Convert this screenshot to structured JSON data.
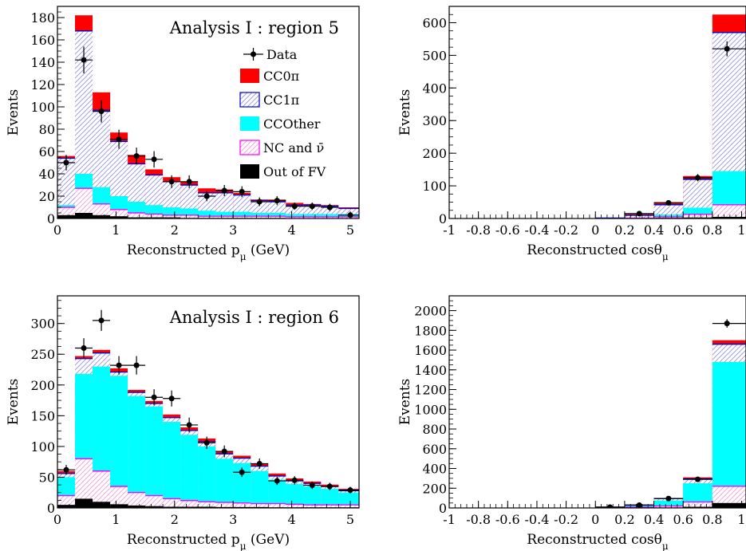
{
  "colors": {
    "cc0pi": "#ff0000",
    "cc1pi_line": "#0000cc",
    "cc1pi_hatch": "#8f8fd8",
    "ccother": "#00ffff",
    "nc": "#ff00ff",
    "nc_hatch": "#f29ad8",
    "outfv": "#000000"
  },
  "chart_data": [
    {
      "type": "histogram",
      "title": "Analysis I : region 5",
      "xlabel": "Reconstructed p_μ (GeV)",
      "ylabel": "Events",
      "xlim": [
        0,
        5.15
      ],
      "ylim": [
        0,
        190
      ],
      "xticks": [
        0,
        1,
        2,
        3,
        4,
        5
      ],
      "xtick_labels": [
        "0",
        "1",
        "2",
        "3",
        "4",
        "5"
      ],
      "yticks": [
        0,
        20,
        40,
        60,
        80,
        100,
        120,
        140,
        160,
        180
      ],
      "ytick_labels": [
        "0",
        "20",
        "40",
        "60",
        "80",
        "100",
        "120",
        "140",
        "160",
        "180"
      ],
      "bin_edges": [
        0,
        0.3,
        0.6,
        0.9,
        1.2,
        1.5,
        1.8,
        2.1,
        2.4,
        2.7,
        3.0,
        3.3,
        3.6,
        3.9,
        4.2,
        4.5,
        4.8,
        5.15
      ],
      "stack": {
        "outfv": [
          3,
          5,
          3,
          2,
          1,
          1,
          1,
          0.5,
          0.5,
          0.5,
          0.5,
          0.5,
          0.5,
          0.3,
          0.3,
          0.3,
          0.3
        ],
        "nc": [
          10,
          27,
          13,
          8,
          5,
          4,
          3,
          3,
          2,
          2,
          2,
          2,
          2,
          1.5,
          1.5,
          1.5,
          1.5
        ],
        "ccother": [
          12,
          40,
          28,
          20,
          15,
          12,
          10,
          9,
          7,
          6,
          6,
          5,
          5,
          4,
          4,
          4,
          4
        ],
        "cc1pi": [
          54,
          168,
          97,
          69,
          49,
          39,
          33,
          30,
          23,
          23,
          21,
          16,
          15,
          12,
          12,
          11,
          9
        ],
        "cc0pi": [
          56,
          182,
          113,
          77,
          57,
          44,
          37,
          33,
          27,
          26,
          23,
          17,
          17,
          14,
          13,
          12,
          10
        ]
      },
      "data_points": {
        "x": [
          0.15,
          0.45,
          0.75,
          1.05,
          1.35,
          1.65,
          1.95,
          2.25,
          2.55,
          2.85,
          3.15,
          3.45,
          3.75,
          4.05,
          4.35,
          4.65,
          5.0
        ],
        "y": [
          50,
          142,
          96,
          71,
          56,
          53,
          33,
          33,
          20,
          25,
          24,
          15,
          16,
          11,
          11,
          10,
          3
        ],
        "yerr": [
          7,
          12,
          10,
          8.5,
          7.5,
          7.3,
          5.7,
          5.7,
          4.5,
          5,
          4.9,
          3.9,
          4,
          3.3,
          3.3,
          3.2,
          1.7
        ]
      },
      "legend": {
        "placement": "upper right",
        "entries": [
          {
            "key": "data",
            "label": "Data"
          },
          {
            "key": "cc0pi",
            "label": "CC0π"
          },
          {
            "key": "cc1pi",
            "label": "CC1π"
          },
          {
            "key": "ccother",
            "label": "CCOther"
          },
          {
            "key": "nc",
            "label": "NC and ν̄"
          },
          {
            "key": "outfv",
            "label": "Out of FV"
          }
        ]
      }
    },
    {
      "type": "histogram",
      "title": "",
      "xlabel": "Reconstructed cosθ_μ",
      "ylabel": "Events",
      "xlim": [
        -1,
        1.03
      ],
      "ylim": [
        0,
        650
      ],
      "xticks": [
        -1,
        -0.8,
        -0.6,
        -0.4,
        -0.2,
        0,
        0.2,
        0.4,
        0.6,
        0.8,
        1.0
      ],
      "xtick_labels": [
        "-1",
        "-0.8",
        "-0.6",
        "-0.4",
        "-0.2",
        "0",
        "0.2",
        "0.4",
        "0.6",
        "0.8",
        "1"
      ],
      "yticks": [
        0,
        100,
        200,
        300,
        400,
        500,
        600
      ],
      "ytick_labels": [
        "0",
        "100",
        "200",
        "300",
        "400",
        "500",
        "600"
      ],
      "bin_edges": [
        -1,
        0,
        0.2,
        0.4,
        0.6,
        0.8,
        1.03
      ],
      "stack": {
        "outfv": [
          0,
          0,
          0.5,
          2,
          3,
          5
        ],
        "nc": [
          0,
          0,
          1,
          5,
          13,
          42
        ],
        "ccother": [
          0,
          0.5,
          2,
          12,
          33,
          145
        ],
        "cc1pi": [
          0,
          1.5,
          10,
          42,
          120,
          570
        ],
        "cc0pi": [
          0,
          2,
          13,
          50,
          130,
          625
        ]
      },
      "data_points": {
        "x": [
          0.3,
          0.5,
          0.7,
          0.9
        ],
        "y": [
          15,
          48,
          125,
          520
        ],
        "yerr": [
          4,
          7,
          11,
          23
        ]
      }
    },
    {
      "type": "histogram",
      "title": "Analysis I : region 6",
      "xlabel": "Reconstructed p_μ (GeV)",
      "ylabel": "Events",
      "xlim": [
        0,
        5.15
      ],
      "ylim": [
        0,
        345
      ],
      "xticks": [
        0,
        1,
        2,
        3,
        4,
        5
      ],
      "xtick_labels": [
        "0",
        "1",
        "2",
        "3",
        "4",
        "5"
      ],
      "yticks": [
        0,
        50,
        100,
        150,
        200,
        250,
        300
      ],
      "ytick_labels": [
        "0",
        "50",
        "100",
        "150",
        "200",
        "250",
        "300"
      ],
      "bin_edges": [
        0,
        0.3,
        0.6,
        0.9,
        1.2,
        1.5,
        1.8,
        2.1,
        2.4,
        2.7,
        3.0,
        3.3,
        3.6,
        3.9,
        4.2,
        4.5,
        4.8,
        5.15
      ],
      "stack": {
        "outfv": [
          5,
          15,
          10,
          6,
          4,
          3,
          2,
          2,
          2,
          1.5,
          1.5,
          1.5,
          1,
          1,
          1,
          1,
          1
        ],
        "nc": [
          20,
          80,
          60,
          35,
          25,
          20,
          15,
          12,
          10,
          9,
          8,
          7,
          7,
          6,
          5,
          5,
          5
        ],
        "ccother": [
          50,
          218,
          230,
          215,
          182,
          165,
          140,
          119,
          100,
          80,
          73,
          60,
          46,
          39,
          35,
          31,
          25
        ],
        "cc1pi": [
          56,
          243,
          252,
          221,
          188,
          170,
          147,
          126,
          108,
          88,
          81,
          68,
          52,
          44,
          40,
          35,
          28
        ],
        "cc0pi": [
          60,
          247,
          257,
          227,
          192,
          174,
          152,
          131,
          113,
          92,
          85,
          72,
          56,
          48,
          43,
          38,
          31
        ]
      },
      "data_points": {
        "x": [
          0.15,
          0.45,
          0.75,
          1.05,
          1.35,
          1.65,
          1.95,
          2.25,
          2.55,
          2.85,
          3.15,
          3.45,
          3.75,
          4.05,
          4.35,
          4.65,
          5.0
        ],
        "y": [
          62,
          260,
          305,
          232,
          232,
          180,
          178,
          135,
          106,
          92,
          58,
          72,
          44,
          45,
          37,
          35,
          29
        ],
        "yerr": [
          8,
          16,
          17,
          15,
          15,
          13,
          13,
          12,
          10,
          9.6,
          7.6,
          8.5,
          6.6,
          6.7,
          6.1,
          5.9,
          5.4
        ]
      }
    },
    {
      "type": "histogram",
      "title": "",
      "xlabel": "Reconstructed cosθ_μ",
      "ylabel": "Events",
      "xlim": [
        -1,
        1.03
      ],
      "ylim": [
        0,
        2150
      ],
      "xticks": [
        -1,
        -0.8,
        -0.6,
        -0.4,
        -0.2,
        0,
        0.2,
        0.4,
        0.6,
        0.8,
        1.0
      ],
      "xtick_labels": [
        "-1",
        "-0.8",
        "-0.6",
        "-0.4",
        "-0.2",
        "0",
        "0.2",
        "0.4",
        "0.6",
        "0.8",
        "1"
      ],
      "yticks": [
        0,
        200,
        400,
        600,
        800,
        1000,
        1200,
        1400,
        1600,
        1800,
        2000
      ],
      "ytick_labels": [
        "0",
        "200",
        "400",
        "600",
        "800",
        "1000",
        "1200",
        "1400",
        "1600",
        "1800",
        "2000"
      ],
      "bin_edges": [
        -1,
        0,
        0.2,
        0.4,
        0.6,
        0.8,
        1.03
      ],
      "stack": {
        "outfv": [
          0,
          1,
          3,
          5,
          12,
          50
        ],
        "nc": [
          0,
          2,
          8,
          20,
          60,
          220
        ],
        "ccother": [
          0,
          6,
          25,
          75,
          250,
          1480
        ],
        "cc1pi": [
          0,
          8,
          30,
          95,
          295,
          1660
        ],
        "cc0pi": [
          0,
          10,
          33,
          100,
          310,
          1700
        ]
      },
      "data_points": {
        "x": [
          0.1,
          0.3,
          0.5,
          0.7,
          0.9
        ],
        "y": [
          8,
          28,
          95,
          290,
          1870
        ],
        "yerr": [
          2.8,
          5.3,
          9.7,
          17,
          43
        ]
      }
    }
  ]
}
